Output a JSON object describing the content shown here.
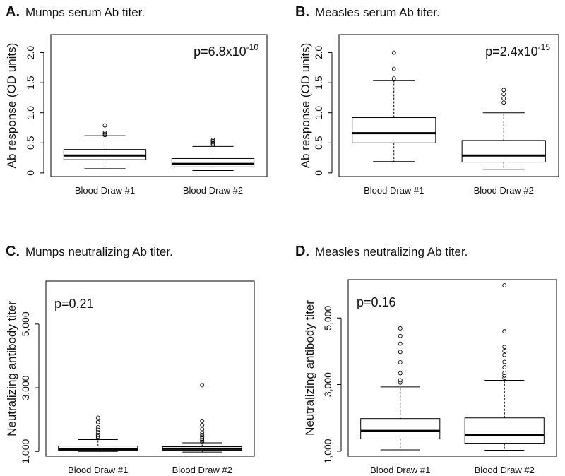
{
  "chart_data": [
    {
      "id": "A",
      "type": "box",
      "letter": "A.",
      "title": "Mumps serum Ab titer.",
      "ylabel": "Ab response (OD units)",
      "xlabel": "",
      "categories": [
        "Blood Draw #1",
        "Blood Draw #2"
      ],
      "ylim": [
        -0.06,
        2.3
      ],
      "yticks": [
        0,
        0.5,
        1.0,
        1.5,
        2.0
      ],
      "ytick_labels": [
        "0",
        "0.5",
        "1.0",
        "1.5",
        "2.0"
      ],
      "annotation": {
        "base": "p=6.8x10",
        "exp": "-10",
        "position": "top-right"
      },
      "boxes": [
        {
          "name": "Blood Draw #1",
          "min": 0.07,
          "q1": 0.22,
          "median": 0.29,
          "q3": 0.39,
          "max": 0.62,
          "outliers": [
            0.63,
            0.65,
            0.67,
            0.79
          ]
        },
        {
          "name": "Blood Draw #2",
          "min": 0.04,
          "q1": 0.1,
          "median": 0.15,
          "q3": 0.24,
          "max": 0.44,
          "outliers": [
            0.47,
            0.49,
            0.51,
            0.53,
            0.55
          ]
        }
      ]
    },
    {
      "id": "B",
      "type": "box",
      "letter": "B.",
      "title": "Measles serum Ab titer.",
      "ylabel": "Ab response (OD units)",
      "xlabel": "",
      "categories": [
        "Blood Draw #1",
        "Blood Draw #2"
      ],
      "ylim": [
        -0.06,
        2.3
      ],
      "yticks": [
        0,
        0.5,
        1.0,
        1.5,
        2.0
      ],
      "ytick_labels": [
        "0",
        "0.5",
        "1.0",
        "1.5",
        "2.0"
      ],
      "annotation": {
        "base": "p=2.4x10",
        "exp": "-15",
        "position": "top-right"
      },
      "boxes": [
        {
          "name": "Blood Draw #1",
          "min": 0.19,
          "q1": 0.5,
          "median": 0.66,
          "q3": 0.92,
          "max": 1.54,
          "outliers": [
            1.57,
            1.73,
            2.0
          ]
        },
        {
          "name": "Blood Draw #2",
          "min": 0.06,
          "q1": 0.18,
          "median": 0.29,
          "q3": 0.54,
          "max": 1.0,
          "outliers": [
            1.17,
            1.24,
            1.31,
            1.38
          ]
        }
      ]
    },
    {
      "id": "C",
      "type": "box",
      "letter": "C.",
      "title": "Mumps neutralizing Ab titer.",
      "ylabel": "Neutralizing antibody titer",
      "xlabel": "",
      "categories": [
        "Blood Draw #1",
        "Blood Draw #2"
      ],
      "ylim": [
        850,
        6350
      ],
      "yticks": [
        1000,
        3000,
        5000
      ],
      "ytick_labels": [
        "1,000",
        "3,000",
        "5,000"
      ],
      "annotation": {
        "base": "p=0.21",
        "exp": "",
        "position": "top-left"
      },
      "boxes": [
        {
          "name": "Blood Draw #1",
          "min": 1000,
          "q1": 1040,
          "median": 1080,
          "q3": 1170,
          "max": 1370,
          "outliers": [
            1420,
            1470,
            1520,
            1600,
            1680,
            1760,
            1920,
            2060
          ]
        },
        {
          "name": "Blood Draw #2",
          "min": 980,
          "q1": 1040,
          "median": 1085,
          "q3": 1150,
          "max": 1270,
          "outliers": [
            1300,
            1350,
            1400,
            1460,
            1520,
            1600,
            1700,
            1830,
            1960,
            3080
          ]
        }
      ]
    },
    {
      "id": "D",
      "type": "box",
      "letter": "D.",
      "title": "Measles neutralizing Ab titer.",
      "ylabel": "Neutralizing antibody titer",
      "xlabel": "",
      "categories": [
        "Blood Draw #1",
        "Blood Draw #2"
      ],
      "ylim": [
        850,
        6150
      ],
      "yticks": [
        1000,
        3000,
        5000
      ],
      "ytick_labels": [
        "1,000",
        "3,000",
        "5,000"
      ],
      "annotation": {
        "base": "p=0.16",
        "exp": "",
        "position": "top-left"
      },
      "boxes": [
        {
          "name": "Blood Draw #1",
          "min": 1040,
          "q1": 1370,
          "median": 1610,
          "q3": 1980,
          "max": 2930,
          "outliers": [
            3060,
            3130,
            3340,
            3670,
            3980,
            4230,
            4460,
            4690
          ]
        },
        {
          "name": "Blood Draw #2",
          "min": 1030,
          "q1": 1240,
          "median": 1490,
          "q3": 2000,
          "max": 3130,
          "outliers": [
            3200,
            3270,
            3350,
            3520,
            3680,
            3890,
            4010,
            4130,
            4600,
            5980
          ]
        }
      ]
    }
  ]
}
